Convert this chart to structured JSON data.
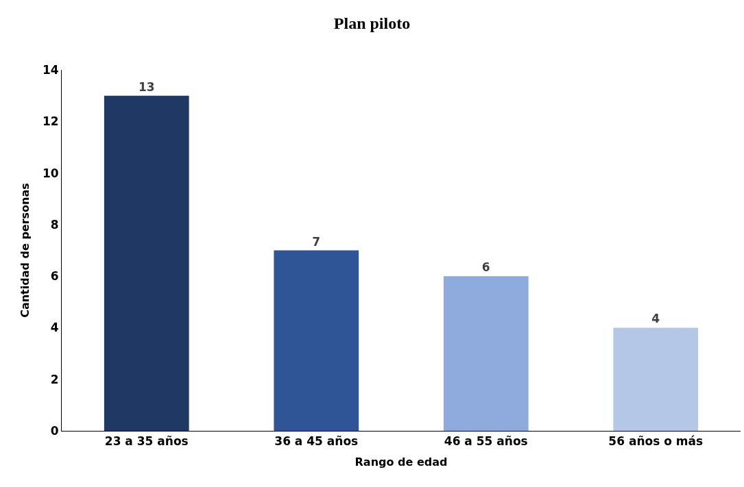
{
  "chart_data": {
    "type": "bar",
    "title": "Plan piloto",
    "xlabel": "Rango de edad",
    "ylabel": "Cantidad de personas",
    "categories": [
      "23 a 35 años",
      "36 a 45 años",
      "46 a 55 años",
      "56 años o más"
    ],
    "values": [
      13,
      7,
      6,
      4
    ],
    "colors": [
      "#203864",
      "#2f5597",
      "#8faadc",
      "#b4c7e7"
    ],
    "ylim": [
      0,
      14
    ],
    "yticks": [
      0,
      2,
      4,
      6,
      8,
      10,
      12,
      14
    ],
    "data_labels": true
  }
}
